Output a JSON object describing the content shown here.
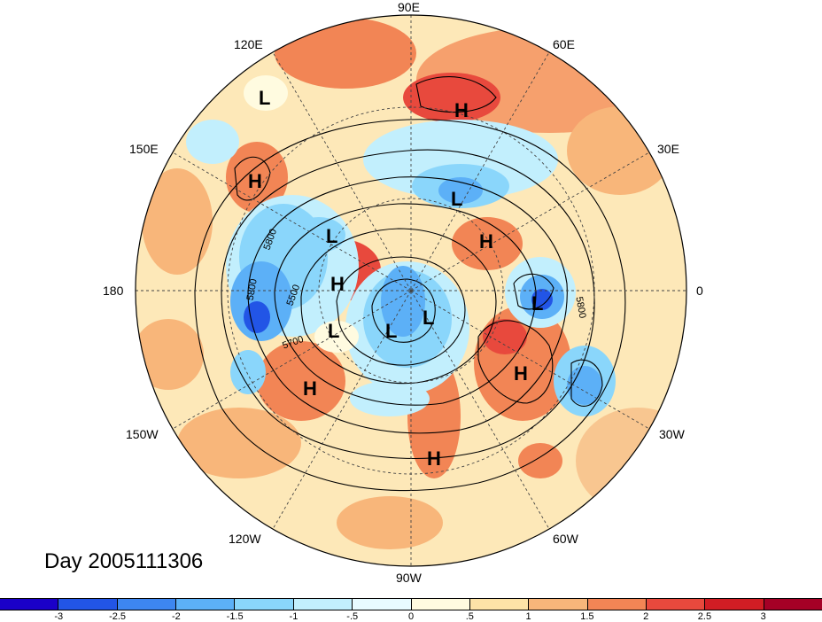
{
  "map": {
    "projection": "north polar stereographic",
    "longitude_labels": [
      "90E",
      "60E",
      "30E",
      "0",
      "30W",
      "60W",
      "90W",
      "120W",
      "150W",
      "180",
      "150E",
      "120E"
    ],
    "contour_labels": [
      "5800",
      "5800",
      "5500",
      "5700",
      "5800"
    ],
    "pressure_centers": [
      {
        "type": "L",
        "lon_hint": "120E high"
      },
      {
        "type": "H",
        "lon_hint": "70E"
      },
      {
        "type": "H",
        "lon_hint": "150E"
      },
      {
        "type": "L",
        "lon_hint": "60E inner"
      },
      {
        "type": "L",
        "lon_hint": "170E"
      },
      {
        "type": "H",
        "lon_hint": "30E inner"
      },
      {
        "type": "H",
        "lon_hint": "175E"
      },
      {
        "type": "L",
        "lon_hint": "0"
      },
      {
        "type": "L",
        "lon_hint": "165W"
      },
      {
        "type": "L",
        "lon_hint": "pole"
      },
      {
        "type": "L",
        "lon_hint": "pole 2"
      },
      {
        "type": "H",
        "lon_hint": "45W"
      },
      {
        "type": "H",
        "lon_hint": "150W"
      },
      {
        "type": "H",
        "lon_hint": "80W"
      }
    ]
  },
  "title": "Day 2005111306",
  "colorbar": {
    "tick_labels": [
      "-3",
      "-2.5",
      "-2",
      "-1.5",
      "-1",
      "-.5",
      "0",
      ".5",
      "1",
      "1.5",
      "2",
      "2.5",
      "3"
    ],
    "colors": [
      "#1a00c8",
      "#2255e6",
      "#3d86f0",
      "#5cb0f7",
      "#8ad6fb",
      "#c2effd",
      "#e8fbff",
      "#fffbe0",
      "#fde3a7",
      "#f8b67a",
      "#f28555",
      "#e8493d",
      "#d11d24",
      "#a50026"
    ]
  }
}
